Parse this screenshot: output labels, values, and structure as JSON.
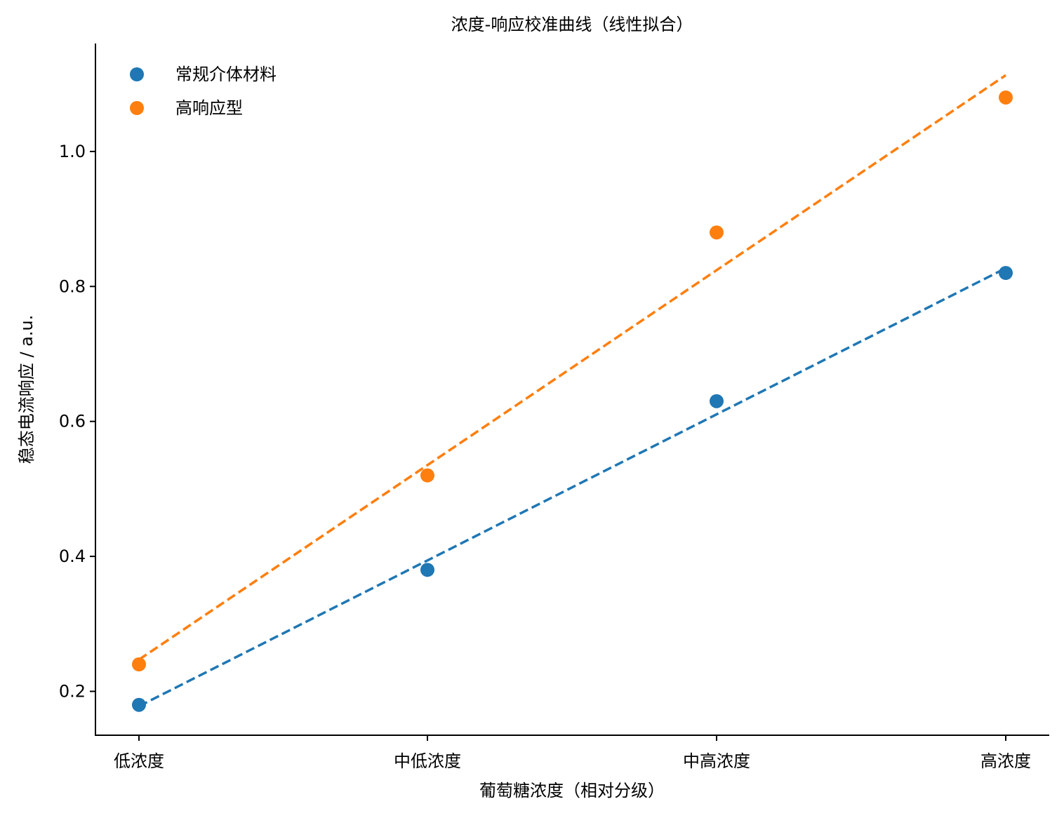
{
  "chart_data": {
    "type": "scatter",
    "title": "浓度-响应校准曲线（线性拟合）",
    "xlabel": "葡萄糖浓度（相对分级）",
    "ylabel": "稳态电流响应 / a.u.",
    "categories": [
      "低浓度",
      "中低浓度",
      "中高浓度",
      "高浓度"
    ],
    "y_ticks": [
      0.2,
      0.4,
      0.6,
      0.8,
      1.0
    ],
    "y_tick_labels": [
      "0.2",
      "0.4",
      "0.6",
      "0.8",
      "1.0"
    ],
    "ylim": [
      0.135,
      1.16
    ],
    "grid": false,
    "legend_position": "top-left",
    "series": [
      {
        "name": "常规介体材料",
        "color": "#1f77b4",
        "values": [
          0.18,
          0.38,
          0.63,
          0.82
        ],
        "fit": {
          "style": "dashed",
          "start": 0.178,
          "end": 0.827
        }
      },
      {
        "name": "高响应型",
        "color": "#ff7f0e",
        "values": [
          0.24,
          0.52,
          0.88,
          1.08
        ],
        "fit": {
          "style": "dashed",
          "start": 0.247,
          "end": 1.113
        }
      }
    ]
  }
}
